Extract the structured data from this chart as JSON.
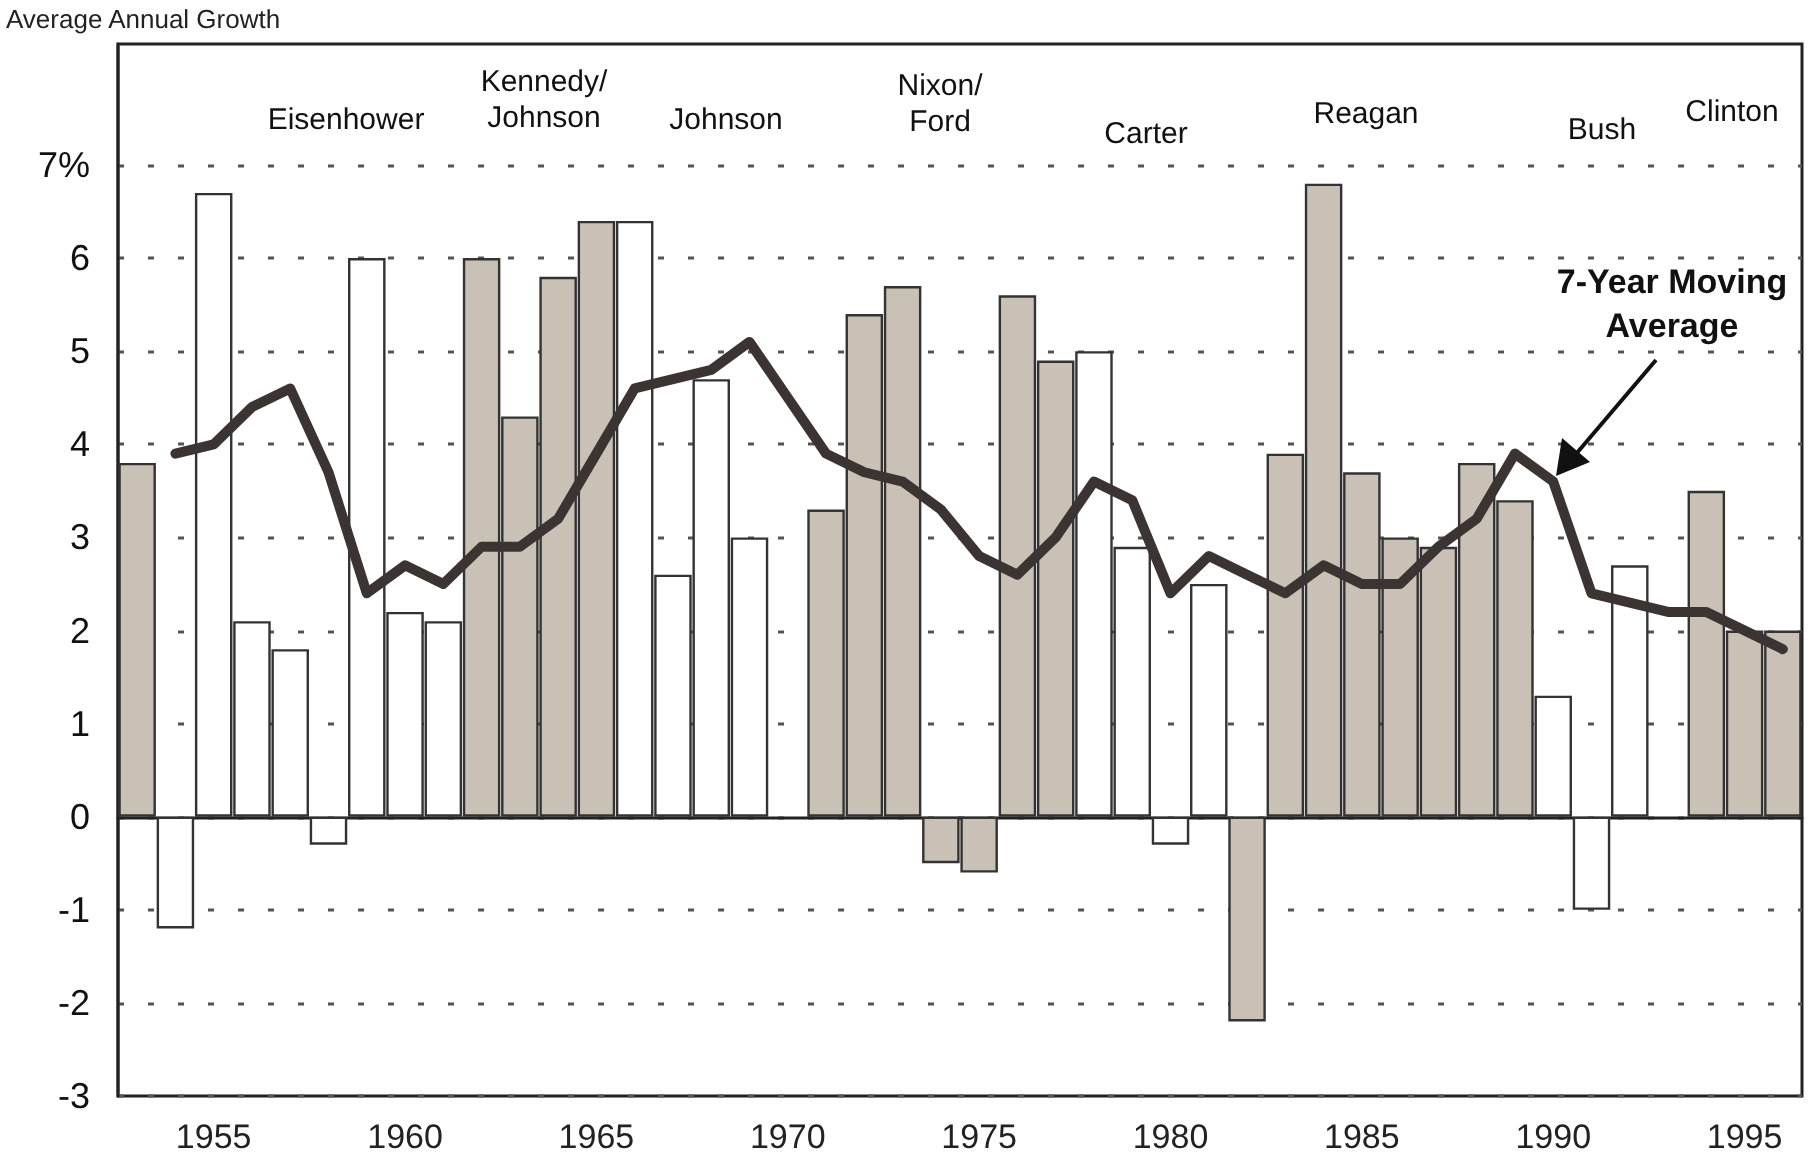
{
  "chart_data": {
    "type": "bar",
    "ylabel": "Average Annual Growth",
    "annotations": [
      "Eisenhower",
      "Kennedy/\nJohnson",
      "Johnson",
      "Nixon/\nFord",
      "Carter",
      "Reagan",
      "Bush",
      "Clinton",
      "7-Year Moving\nAverage"
    ],
    "categories": [
      null,
      null,
      "1955",
      null,
      null,
      null,
      null,
      "1960",
      null,
      null,
      null,
      null,
      "1965",
      null,
      null,
      null,
      null,
      "1970",
      null,
      null,
      null,
      null,
      "1975",
      null,
      null,
      null,
      null,
      "1980",
      null,
      null,
      null,
      null,
      "1985",
      null,
      null,
      null,
      null,
      "1990",
      null,
      null,
      null,
      null,
      "1995",
      null
    ],
    "series": [
      {
        "color": "#c9c0b6",
        "values": [
          3.8,
          null,
          null,
          null,
          null,
          null,
          null,
          null,
          null,
          6.0,
          4.3,
          5.8,
          6.4,
          null,
          null,
          null,
          null,
          null,
          3.3,
          5.4,
          5.7,
          -0.5,
          -0.6,
          5.6,
          4.9,
          null,
          null,
          null,
          null,
          -2.2,
          3.9,
          6.8,
          3.7,
          3.0,
          2.9,
          3.8,
          3.4,
          null,
          null,
          null,
          null,
          3.5,
          2.0,
          2.0
        ]
      },
      {
        "color": "#ffffff",
        "values": [
          null,
          -1.2,
          6.7,
          2.1,
          1.8,
          -0.3,
          6.0,
          2.2,
          2.1,
          null,
          null,
          null,
          null,
          6.4,
          2.6,
          4.7,
          3.0,
          null,
          null,
          null,
          null,
          null,
          null,
          null,
          null,
          5.0,
          2.9,
          -0.3,
          2.5,
          null,
          null,
          null,
          null,
          null,
          null,
          null,
          null,
          1.3,
          -1.0,
          2.7,
          null,
          null,
          null,
          null
        ]
      },
      {
        "type": "line",
        "color": "#3b3432",
        "values": [
          null,
          3.9,
          4.0,
          4.4,
          4.6,
          3.7,
          2.4,
          2.7,
          2.5,
          2.9,
          2.9,
          3.2,
          3.9,
          4.6,
          4.7,
          4.8,
          5.1,
          4.5,
          3.9,
          3.7,
          3.6,
          3.3,
          2.8,
          2.6,
          3.0,
          3.6,
          3.4,
          2.4,
          2.8,
          2.6,
          2.4,
          2.7,
          2.5,
          2.5,
          2.9,
          3.2,
          3.9,
          3.6,
          2.4,
          2.3,
          2.2,
          2.2,
          2.0,
          1.8
        ]
      }
    ],
    "ylim": [
      -3,
      8.3
    ],
    "yticks": [
      -3,
      -2,
      -1,
      0,
      1,
      2,
      3,
      4,
      5,
      6,
      {
        "value": 7,
        "label": "7%"
      }
    ],
    "grid": "y",
    "marker": "none",
    "line_style": "solid"
  }
}
